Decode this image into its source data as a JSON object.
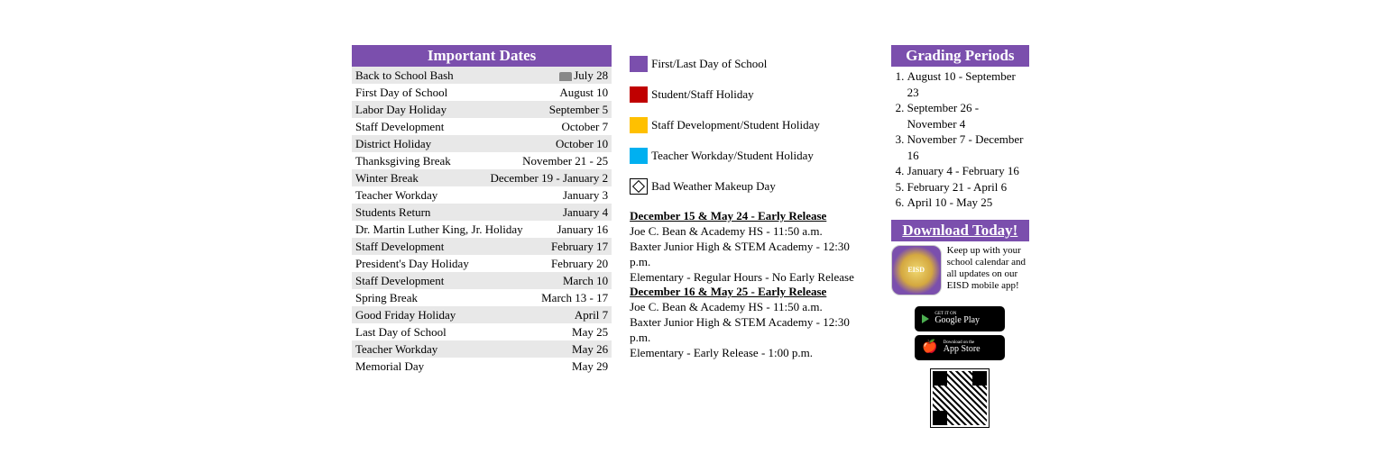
{
  "colors": {
    "purple": "#7b4fad",
    "red": "#c00000",
    "yellow": "#ffc000",
    "cyan": "#00b0f0",
    "row_alt": "#e8e8e8"
  },
  "important_dates": {
    "title": "Important Dates",
    "rows": [
      {
        "event": "Back to School Bash",
        "date": "July 28",
        "has_bus_icon": true
      },
      {
        "event": "First Day of School",
        "date": "August 10"
      },
      {
        "event": "Labor Day Holiday",
        "date": "September 5"
      },
      {
        "event": "Staff Development",
        "date": "October 7"
      },
      {
        "event": "District Holiday",
        "date": "October 10"
      },
      {
        "event": "Thanksgiving Break",
        "date": "November 21 - 25"
      },
      {
        "event": "Winter Break",
        "date": "December 19 - January 2"
      },
      {
        "event": "Teacher Workday",
        "date": "January 3"
      },
      {
        "event": "Students Return",
        "date": "January 4"
      },
      {
        "event": "Dr. Martin Luther King, Jr. Holiday",
        "date": "January 16"
      },
      {
        "event": "Staff Development",
        "date": "February 17"
      },
      {
        "event": "President's Day Holiday",
        "date": "February 20"
      },
      {
        "event": "Staff Development",
        "date": "March 10"
      },
      {
        "event": "Spring Break",
        "date": "March 13 - 17"
      },
      {
        "event": "Good Friday Holiday",
        "date": "April 7"
      },
      {
        "event": "Last Day of School",
        "date": "May 25"
      },
      {
        "event": "Teacher Workday",
        "date": "May 26"
      },
      {
        "event": "Memorial Day",
        "date": "May 29"
      }
    ]
  },
  "legend": [
    {
      "kind": "swatch",
      "color": "#7b4fad",
      "label": "First/Last Day of School"
    },
    {
      "kind": "swatch",
      "color": "#c00000",
      "label": "Student/Staff Holiday"
    },
    {
      "kind": "swatch",
      "color": "#ffc000",
      "label": "Staff Development/Student Holiday"
    },
    {
      "kind": "swatch",
      "color": "#00b0f0",
      "label": "Teacher Workday/Student Holiday"
    },
    {
      "kind": "diamond",
      "label": "Bad Weather Makeup Day"
    }
  ],
  "early_release": {
    "block1": {
      "header": "December 15 & May 24 -  Early Release",
      "lines": [
        "Joe C. Bean & Academy HS - 11:50 a.m.",
        "Baxter Junior High & STEM Academy - 12:30 p.m.",
        "Elementary - Regular Hours - No Early Release"
      ]
    },
    "block2": {
      "header": "December 16 & May 25 - Early Release",
      "lines": [
        "Joe C. Bean & Academy HS - 11:50 a.m.",
        "Baxter Junior High & STEM Academy - 12:30 p.m.",
        "Elementary - Early Release - 1:00 p.m."
      ]
    }
  },
  "grading_periods": {
    "title": "Grading Periods",
    "items": [
      "August 10 - September 23",
      "September 26 - November 4",
      "November 7 - December 16",
      "January 4 - February 16",
      "February 21 - April 6",
      "April 10 - May 25"
    ]
  },
  "download": {
    "title": "Download Today!",
    "text": "Keep up with your school calendar and all updates on our EISD mobile app!",
    "app_icon_label": "EISD",
    "google_play": {
      "small": "GET IT ON",
      "big": "Google Play"
    },
    "app_store": {
      "small": "Download on the",
      "big": "App Store"
    }
  }
}
